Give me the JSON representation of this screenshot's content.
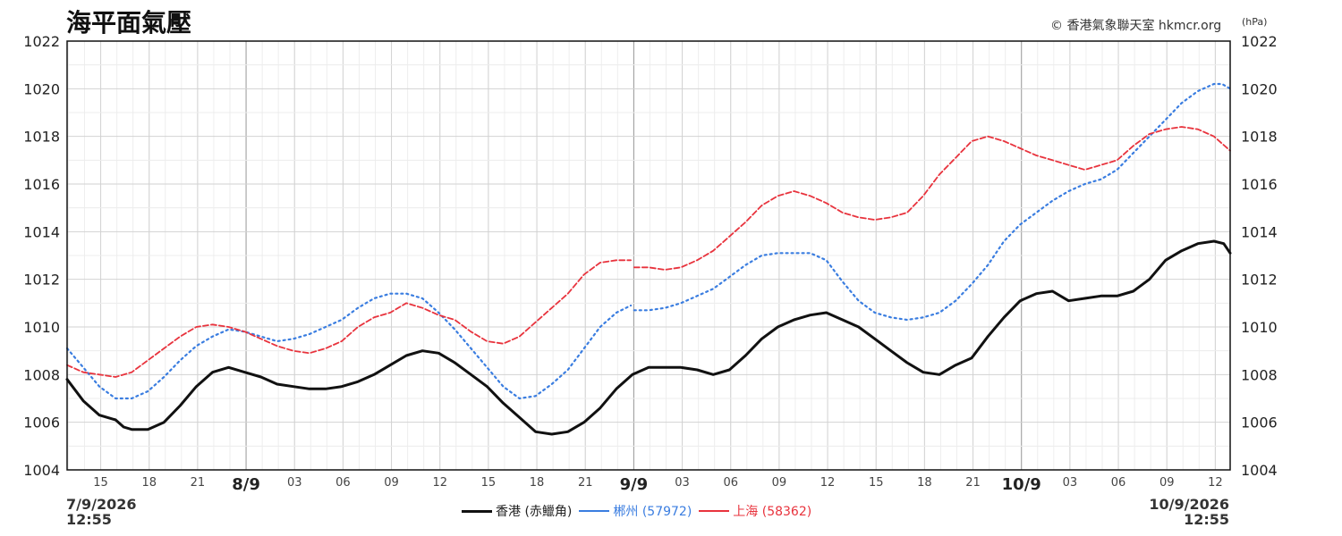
{
  "title": "海平面氣壓",
  "credit": "© 香港氣象聯天室 hkmcr.org",
  "unit": "(hPa)",
  "start_stamp": {
    "date": "7/9/2026",
    "time": "12:55"
  },
  "end_stamp": {
    "date": "10/9/2026",
    "time": "12:55"
  },
  "chart_data": {
    "type": "line",
    "x_unit": "hours since 7/9/2026 12:55",
    "xlim": [
      0,
      72
    ],
    "ylim": [
      1004,
      1022
    ],
    "y_ticks": [
      1004,
      1006,
      1008,
      1010,
      1012,
      1014,
      1016,
      1018,
      1020,
      1022
    ],
    "x_hour_ticks": [
      {
        "x": 2.08,
        "label": "15"
      },
      {
        "x": 5.08,
        "label": "18"
      },
      {
        "x": 8.08,
        "label": "21"
      },
      {
        "x": 14.08,
        "label": "03"
      },
      {
        "x": 17.08,
        "label": "06"
      },
      {
        "x": 20.08,
        "label": "09"
      },
      {
        "x": 23.08,
        "label": "12"
      },
      {
        "x": 26.08,
        "label": "15"
      },
      {
        "x": 29.08,
        "label": "18"
      },
      {
        "x": 32.08,
        "label": "21"
      },
      {
        "x": 38.08,
        "label": "03"
      },
      {
        "x": 41.08,
        "label": "06"
      },
      {
        "x": 44.08,
        "label": "09"
      },
      {
        "x": 47.08,
        "label": "12"
      },
      {
        "x": 50.08,
        "label": "15"
      },
      {
        "x": 53.08,
        "label": "18"
      },
      {
        "x": 56.08,
        "label": "21"
      },
      {
        "x": 62.08,
        "label": "03"
      },
      {
        "x": 65.08,
        "label": "06"
      },
      {
        "x": 68.08,
        "label": "09"
      },
      {
        "x": 71.08,
        "label": "12"
      }
    ],
    "x_day_ticks": [
      {
        "x": 11.08,
        "label": "8/9"
      },
      {
        "x": 35.08,
        "label": "9/9"
      },
      {
        "x": 59.08,
        "label": "10/9"
      }
    ],
    "grid": true,
    "legend_position": "bottom-center",
    "series": [
      {
        "name": "香港 (赤鱲角)",
        "color": "#111111",
        "style": "solid",
        "points": [
          [
            0,
            1007.8
          ],
          [
            1,
            1006.9
          ],
          [
            2,
            1006.3
          ],
          [
            3,
            1006.1
          ],
          [
            3.5,
            1005.8
          ],
          [
            4,
            1005.7
          ],
          [
            5,
            1005.7
          ],
          [
            6,
            1006.0
          ],
          [
            7,
            1006.7
          ],
          [
            8,
            1007.5
          ],
          [
            9,
            1008.1
          ],
          [
            10,
            1008.3
          ],
          [
            11,
            1008.1
          ],
          [
            12,
            1007.9
          ],
          [
            13,
            1007.6
          ],
          [
            14,
            1007.5
          ],
          [
            15,
            1007.4
          ],
          [
            16,
            1007.4
          ],
          [
            17,
            1007.5
          ],
          [
            18,
            1007.7
          ],
          [
            19,
            1008.0
          ],
          [
            20,
            1008.4
          ],
          [
            21,
            1008.8
          ],
          [
            22,
            1009.0
          ],
          [
            23,
            1008.9
          ],
          [
            24,
            1008.5
          ],
          [
            25,
            1008.0
          ],
          [
            26,
            1007.5
          ],
          [
            27,
            1006.8
          ],
          [
            28,
            1006.2
          ],
          [
            29,
            1005.6
          ],
          [
            30,
            1005.5
          ],
          [
            31,
            1005.6
          ],
          [
            32,
            1006.0
          ],
          [
            33,
            1006.6
          ],
          [
            34,
            1007.4
          ],
          [
            35,
            1008.0
          ],
          [
            36,
            1008.3
          ],
          [
            37,
            1008.3
          ],
          [
            38,
            1008.3
          ],
          [
            39,
            1008.2
          ],
          [
            40,
            1008.0
          ],
          [
            41,
            1008.2
          ],
          [
            42,
            1008.8
          ],
          [
            43,
            1009.5
          ],
          [
            44,
            1010.0
          ],
          [
            45,
            1010.3
          ],
          [
            46,
            1010.5
          ],
          [
            47,
            1010.6
          ],
          [
            48,
            1010.3
          ],
          [
            49,
            1010.0
          ],
          [
            50,
            1009.5
          ],
          [
            51,
            1009.0
          ],
          [
            52,
            1008.5
          ],
          [
            53,
            1008.1
          ],
          [
            54,
            1008.0
          ],
          [
            55,
            1008.4
          ],
          [
            56,
            1008.7
          ],
          [
            57,
            1009.6
          ],
          [
            58,
            1010.4
          ],
          [
            59,
            1011.1
          ],
          [
            60,
            1011.4
          ],
          [
            61,
            1011.5
          ],
          [
            62,
            1011.1
          ],
          [
            63,
            1011.2
          ],
          [
            64,
            1011.3
          ],
          [
            65,
            1011.3
          ],
          [
            66,
            1011.5
          ],
          [
            67,
            1012.0
          ],
          [
            68,
            1012.8
          ],
          [
            69,
            1013.2
          ],
          [
            70,
            1013.5
          ],
          [
            71,
            1013.6
          ],
          [
            71.6,
            1013.5
          ],
          [
            72,
            1013.1
          ]
        ]
      },
      {
        "name": "郴州 (57972)",
        "color": "#3a7de0",
        "style": "dotted",
        "points": [
          [
            0,
            1009.1
          ],
          [
            1,
            1008.3
          ],
          [
            2,
            1007.5
          ],
          [
            3,
            1007.0
          ],
          [
            4,
            1007.0
          ],
          [
            5,
            1007.3
          ],
          [
            6,
            1007.9
          ],
          [
            7,
            1008.6
          ],
          [
            8,
            1009.2
          ],
          [
            9,
            1009.6
          ],
          [
            10,
            1009.9
          ],
          [
            11,
            1009.8
          ],
          [
            12,
            1009.6
          ],
          [
            13,
            1009.4
          ],
          [
            14,
            1009.5
          ],
          [
            15,
            1009.7
          ],
          [
            16,
            1010.0
          ],
          [
            17,
            1010.3
          ],
          [
            18,
            1010.8
          ],
          [
            19,
            1011.2
          ],
          [
            20,
            1011.4
          ],
          [
            21,
            1011.4
          ],
          [
            22,
            1011.2
          ],
          [
            23,
            1010.6
          ],
          [
            24,
            1009.9
          ],
          [
            25,
            1009.1
          ],
          [
            26,
            1008.3
          ],
          [
            27,
            1007.5
          ],
          [
            28,
            1007.0
          ],
          [
            29,
            1007.1
          ],
          [
            30,
            1007.6
          ],
          [
            31,
            1008.2
          ],
          [
            32,
            1009.1
          ],
          [
            33,
            1010.0
          ],
          [
            34,
            1010.6
          ],
          [
            34.9,
            1010.9
          ],
          null,
          [
            35.1,
            1010.7
          ],
          [
            36,
            1010.7
          ],
          [
            37,
            1010.8
          ],
          [
            38,
            1011.0
          ],
          [
            39,
            1011.3
          ],
          [
            40,
            1011.6
          ],
          [
            41,
            1012.1
          ],
          [
            42,
            1012.6
          ],
          [
            43,
            1013.0
          ],
          [
            44,
            1013.1
          ],
          [
            45,
            1013.1
          ],
          [
            46,
            1013.1
          ],
          [
            47,
            1012.8
          ],
          [
            48,
            1011.9
          ],
          [
            49,
            1011.1
          ],
          [
            50,
            1010.6
          ],
          [
            51,
            1010.4
          ],
          [
            52,
            1010.3
          ],
          [
            53,
            1010.4
          ],
          [
            54,
            1010.6
          ],
          [
            55,
            1011.1
          ],
          [
            56,
            1011.8
          ],
          [
            57,
            1012.6
          ],
          [
            58,
            1013.6
          ],
          [
            59,
            1014.3
          ],
          [
            60,
            1014.8
          ],
          [
            61,
            1015.3
          ],
          [
            62,
            1015.7
          ],
          [
            63,
            1016.0
          ],
          [
            64,
            1016.2
          ],
          [
            65,
            1016.6
          ],
          [
            66,
            1017.3
          ],
          [
            67,
            1018.0
          ],
          [
            68,
            1018.7
          ],
          [
            69,
            1019.4
          ],
          [
            70,
            1019.9
          ],
          [
            71,
            1020.2
          ],
          [
            71.5,
            1020.2
          ],
          [
            72,
            1020.0
          ]
        ]
      },
      {
        "name": "上海 (58362)",
        "color": "#e8333d",
        "style": "dashed",
        "points": [
          [
            0,
            1008.4
          ],
          [
            1,
            1008.1
          ],
          [
            2,
            1008.0
          ],
          [
            3,
            1007.9
          ],
          [
            4,
            1008.1
          ],
          [
            5,
            1008.6
          ],
          [
            6,
            1009.1
          ],
          [
            7,
            1009.6
          ],
          [
            8,
            1010.0
          ],
          [
            9,
            1010.1
          ],
          [
            10,
            1010.0
          ],
          [
            11,
            1009.8
          ],
          [
            12,
            1009.5
          ],
          [
            13,
            1009.2
          ],
          [
            14,
            1009.0
          ],
          [
            15,
            1008.9
          ],
          [
            16,
            1009.1
          ],
          [
            17,
            1009.4
          ],
          [
            18,
            1010.0
          ],
          [
            19,
            1010.4
          ],
          [
            20,
            1010.6
          ],
          [
            21,
            1011.0
          ],
          [
            22,
            1010.8
          ],
          [
            23,
            1010.5
          ],
          [
            24,
            1010.3
          ],
          [
            25,
            1009.8
          ],
          [
            26,
            1009.4
          ],
          [
            27,
            1009.3
          ],
          [
            28,
            1009.6
          ],
          [
            29,
            1010.2
          ],
          [
            30,
            1010.8
          ],
          [
            31,
            1011.4
          ],
          [
            32,
            1012.2
          ],
          [
            33,
            1012.7
          ],
          [
            34,
            1012.8
          ],
          [
            34.9,
            1012.8
          ],
          null,
          [
            35.1,
            1012.5
          ],
          [
            36,
            1012.5
          ],
          [
            37,
            1012.4
          ],
          [
            38,
            1012.5
          ],
          [
            39,
            1012.8
          ],
          [
            40,
            1013.2
          ],
          [
            41,
            1013.8
          ],
          [
            42,
            1014.4
          ],
          [
            43,
            1015.1
          ],
          [
            44,
            1015.5
          ],
          [
            45,
            1015.7
          ],
          [
            46,
            1015.5
          ],
          [
            47,
            1015.2
          ],
          [
            48,
            1014.8
          ],
          [
            49,
            1014.6
          ],
          [
            50,
            1014.5
          ],
          [
            51,
            1014.6
          ],
          [
            52,
            1014.8
          ],
          [
            53,
            1015.5
          ],
          [
            54,
            1016.4
          ],
          [
            55,
            1017.1
          ],
          [
            56,
            1017.8
          ],
          [
            57,
            1018.0
          ],
          [
            58,
            1017.8
          ],
          [
            59,
            1017.5
          ],
          [
            60,
            1017.2
          ],
          [
            61,
            1017.0
          ],
          [
            62,
            1016.8
          ],
          [
            63,
            1016.6
          ],
          [
            64,
            1016.8
          ],
          [
            65,
            1017.0
          ],
          [
            66,
            1017.6
          ],
          [
            67,
            1018.1
          ],
          [
            68,
            1018.3
          ],
          [
            69,
            1018.4
          ],
          [
            70,
            1018.3
          ],
          [
            71,
            1018.0
          ],
          [
            72,
            1017.4
          ]
        ]
      }
    ]
  }
}
